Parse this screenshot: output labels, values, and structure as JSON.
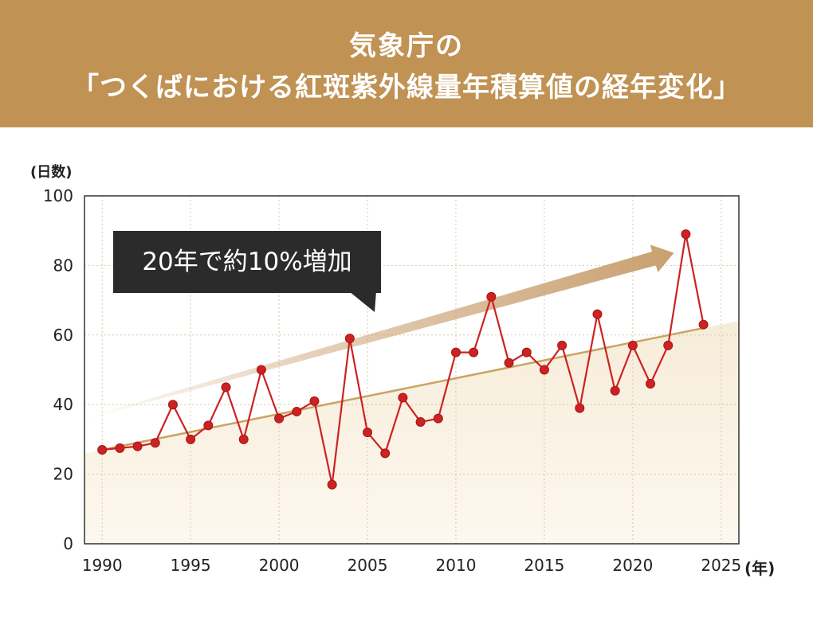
{
  "header": {
    "title_line1": "気象庁の",
    "title_line2": "「つくばにおける紅斑紫外線量年積算値の経年変化」"
  },
  "annotation": "20年で約10%増加",
  "colors": {
    "header_bg": "#c09253",
    "series_line": "#cc2222",
    "trend_line": "#c9a462",
    "callout_bg": "#2b2b2b",
    "arrow": "#c9a070"
  },
  "chart_data": {
    "type": "line",
    "title": "気象庁の「つくばにおける紅斑紫外線量年積算値の経年変化」",
    "ylabel": "(日数)",
    "xlabel": "(年)",
    "ylim": [
      0,
      100
    ],
    "xlim": [
      1989,
      2026
    ],
    "yticks": [
      "0",
      "20",
      "40",
      "60",
      "80",
      "100"
    ],
    "xticks": [
      "1990",
      "1995",
      "2000",
      "2005",
      "2010",
      "2015",
      "2020",
      "2025"
    ],
    "grid": true,
    "x": [
      1990,
      1991,
      1992,
      1993,
      1994,
      1995,
      1996,
      1997,
      1998,
      1999,
      2000,
      2001,
      2002,
      2003,
      2004,
      2005,
      2006,
      2007,
      2008,
      2009,
      2010,
      2011,
      2012,
      2013,
      2014,
      2015,
      2016,
      2017,
      2018,
      2019,
      2020,
      2021,
      2022,
      2023,
      2024
    ],
    "values": [
      27,
      27.5,
      28,
      29,
      40,
      30,
      34,
      45,
      30,
      50,
      36,
      38,
      41,
      17,
      59,
      32,
      26,
      42,
      35,
      36,
      55,
      55,
      71,
      52,
      55,
      50,
      57,
      39,
      66,
      44,
      57,
      46,
      57,
      89,
      63
    ],
    "trend": {
      "x": [
        1990,
        2024
      ],
      "y": [
        27,
        62
      ]
    }
  }
}
